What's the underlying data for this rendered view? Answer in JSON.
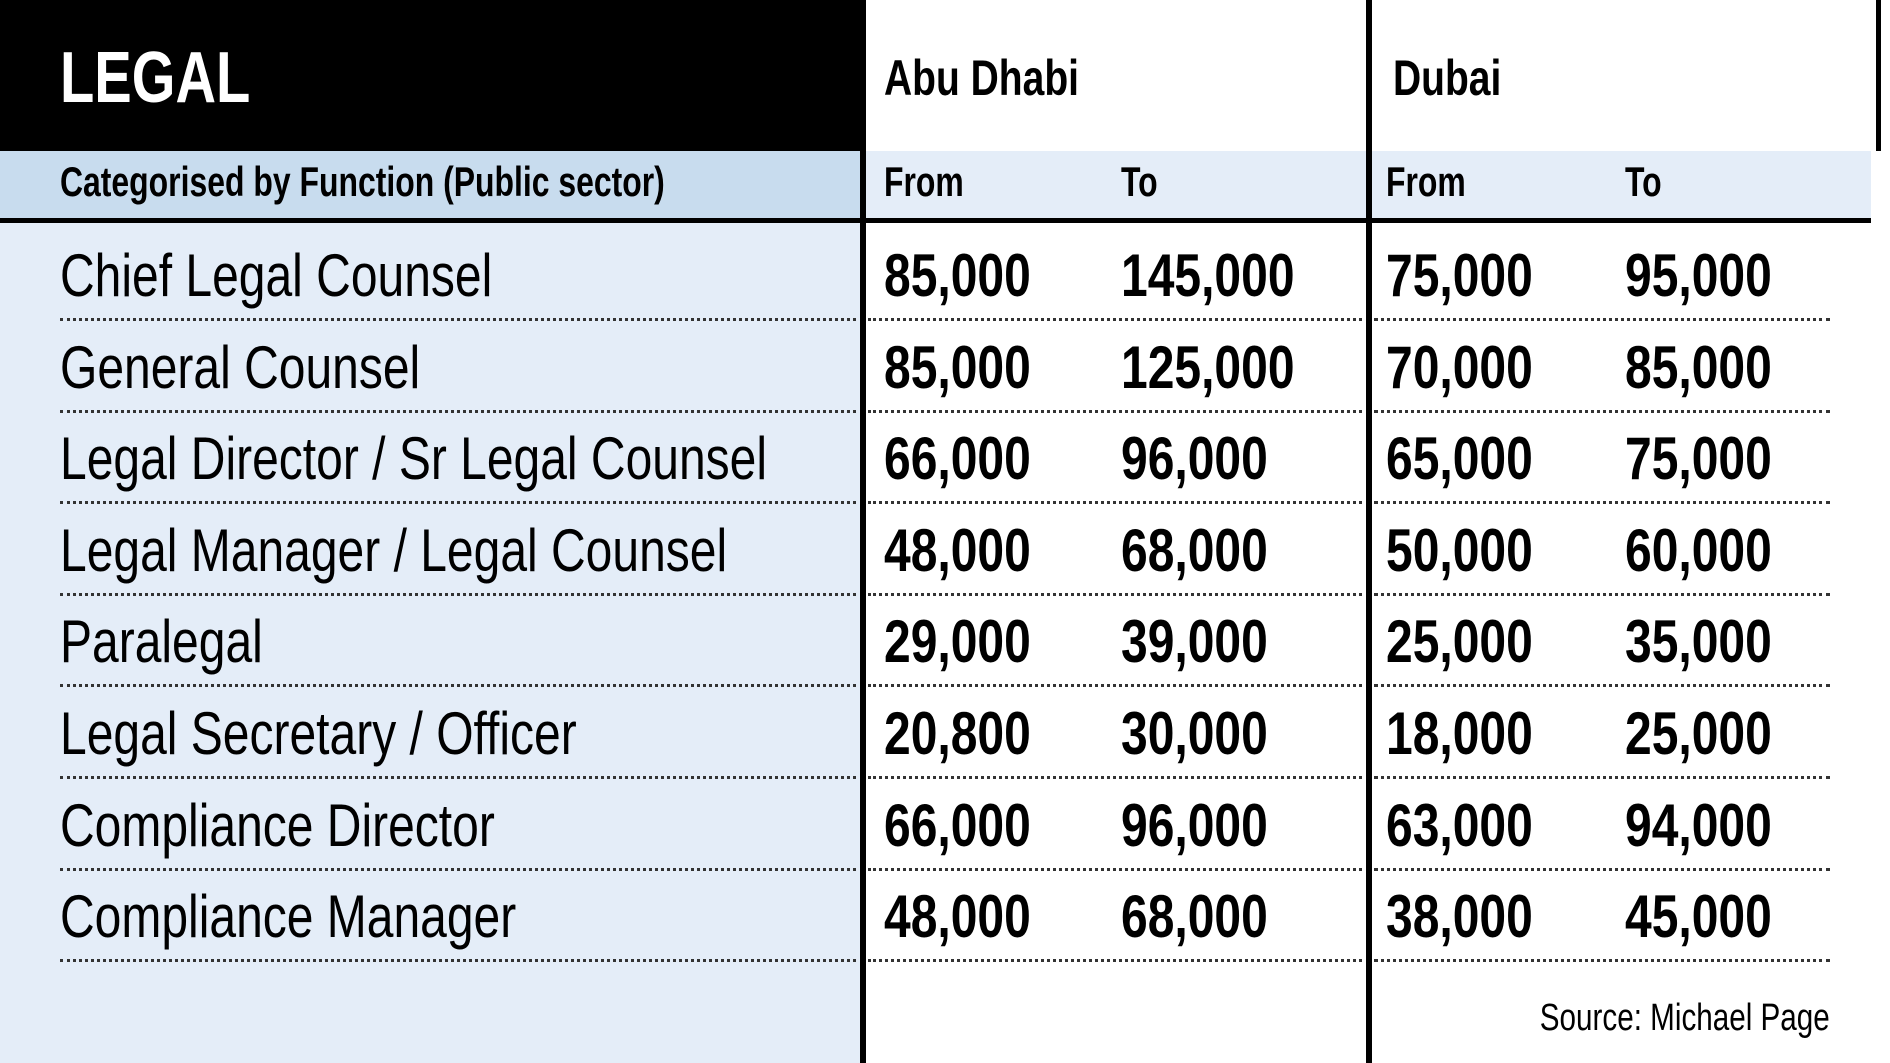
{
  "header": {
    "title": "LEGAL",
    "regions": [
      "Abu Dhabi",
      "Dubai"
    ]
  },
  "subheader": {
    "category": "Categorised by Function (Public sector)",
    "columns": [
      "From",
      "To",
      "From",
      "To"
    ]
  },
  "table": {
    "rows": [
      [
        "Chief Legal Counsel",
        "85,000",
        "145,000",
        "75,000",
        "95,000"
      ],
      [
        "General Counsel",
        "85,000",
        "125,000",
        "70,000",
        "85,000"
      ],
      [
        "Legal Director / Sr Legal Counsel",
        "66,000",
        "96,000",
        "65,000",
        "75,000"
      ],
      [
        "Legal Manager / Legal Counsel",
        "48,000",
        "68,000",
        "50,000",
        "60,000"
      ],
      [
        "Paralegal",
        "29,000",
        "39,000",
        "25,000",
        "35,000"
      ],
      [
        "Legal Secretary / Officer",
        "20,800",
        "30,000",
        "18,000",
        "25,000"
      ],
      [
        "Compliance Director",
        "66,000",
        "96,000",
        "63,000",
        "94,000"
      ],
      [
        "Compliance Manager",
        "48,000",
        "68,000",
        "38,000",
        "45,000"
      ]
    ]
  },
  "footer": {
    "source": "Source: Michael Page"
  }
}
